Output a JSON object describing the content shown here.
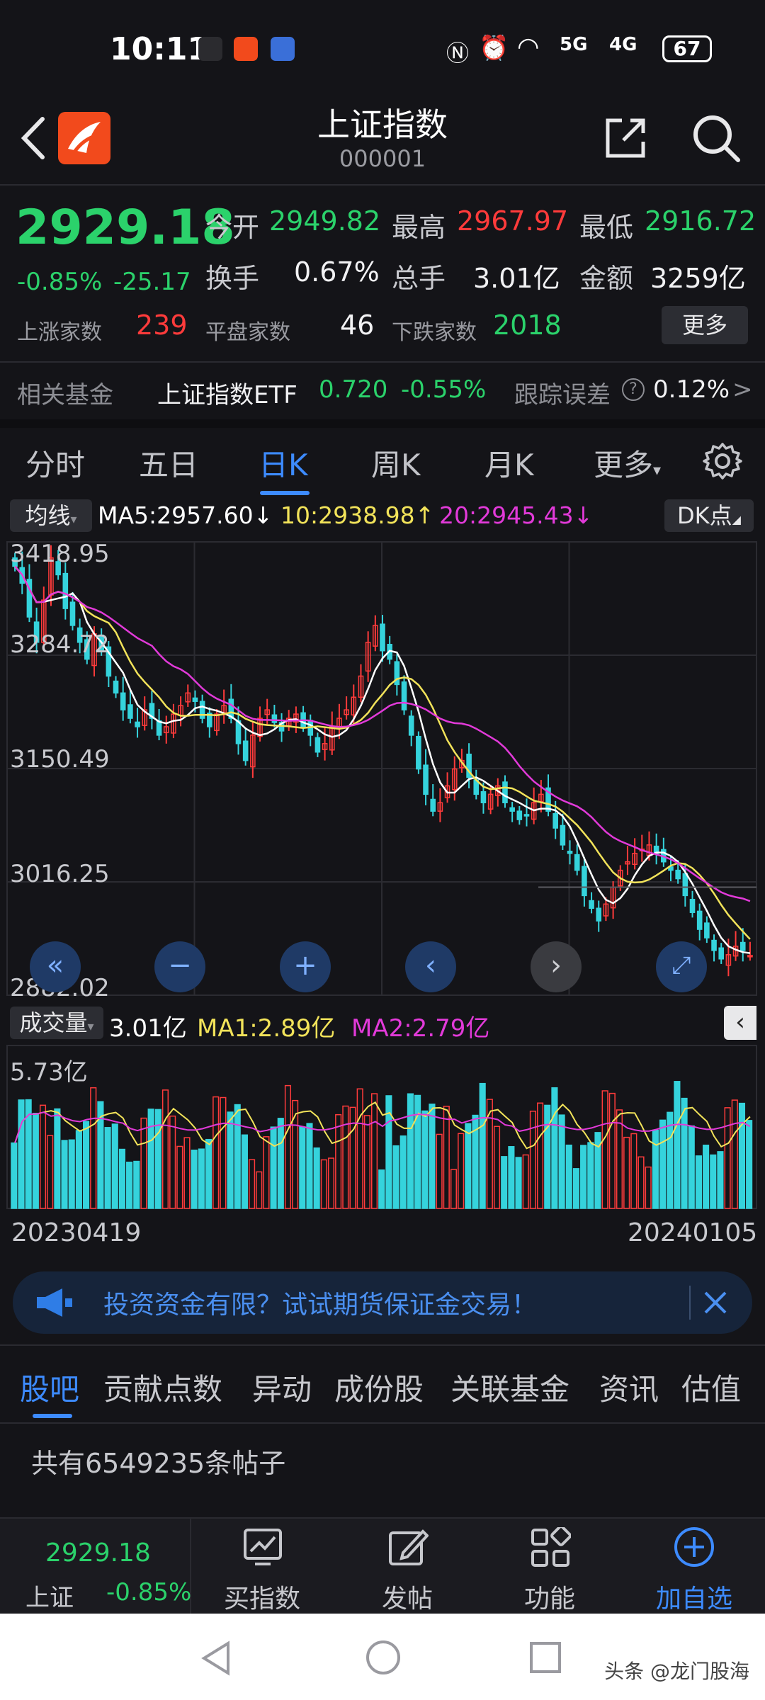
{
  "status_bar": {
    "time": "10:11",
    "signal_5g": "5G",
    "signal_4g": "4G",
    "battery": "67"
  },
  "header": {
    "title": "上证指数",
    "code": "000001"
  },
  "quote": {
    "price": "2929.18",
    "change_pct": "-0.85%",
    "change_val": "-25.17",
    "open_label": "今开",
    "open": "2949.82",
    "high_label": "最高",
    "high": "2967.97",
    "low_label": "最低",
    "low": "2916.72",
    "turnover_label": "换手",
    "turnover": "0.67%",
    "volume_label": "总手",
    "volume": "3.01亿",
    "amount_label": "金额",
    "amount": "3259亿",
    "up_label": "上涨家数",
    "up": "239",
    "flat_label": "平盘家数",
    "flat": "46",
    "down_label": "下跌家数",
    "down": "2018",
    "more": "更多"
  },
  "fund": {
    "label": "相关基金",
    "name": "上证指数ETF",
    "price": "0.720",
    "change": "-0.55%",
    "error_label": "跟踪误差",
    "error": "0.12%",
    "arrow": ">"
  },
  "tabs": [
    "分时",
    "五日",
    "日K",
    "周K",
    "月K",
    "更多"
  ],
  "active_tab": 2,
  "ma": {
    "chip": "均线",
    "ma5": "MA5:2957.60",
    "ma10": "10:2938.98",
    "ma20": "20:2945.43",
    "dk": "DK点",
    "color_ma5": "#ffffff",
    "color_ma10": "#f2e35a",
    "color_ma20": "#e23ad9"
  },
  "chart_data": {
    "type": "candlestick",
    "y_ticks": [
      "3418.95",
      "3284.72",
      "3150.49",
      "3016.25",
      "2882.02"
    ],
    "ylim": [
      2882.02,
      3418.95
    ],
    "x_labels": [
      "20230419",
      "20240105"
    ],
    "close": [
      3390,
      3370,
      3330,
      3300,
      3350,
      3400,
      3380,
      3340,
      3320,
      3300,
      3280,
      3310,
      3290,
      3260,
      3240,
      3220,
      3210,
      3200,
      3220,
      3210,
      3190,
      3200,
      3215,
      3225,
      3240,
      3230,
      3210,
      3200,
      3215,
      3225,
      3210,
      3180,
      3160,
      3190,
      3210,
      3220,
      3205,
      3195,
      3210,
      3215,
      3200,
      3190,
      3170,
      3180,
      3200,
      3210,
      3220,
      3235,
      3260,
      3300,
      3320,
      3290,
      3280,
      3250,
      3220,
      3190,
      3150,
      3120,
      3100,
      3110,
      3130,
      3150,
      3160,
      3140,
      3120,
      3110,
      3120,
      3130,
      3110,
      3100,
      3090,
      3095,
      3110,
      3120,
      3100,
      3080,
      3060,
      3050,
      3030,
      3000,
      2985,
      2970,
      2990,
      3010,
      3030,
      3040,
      3050,
      3055,
      3060,
      3050,
      3040,
      3030,
      3020,
      3000,
      2980,
      2960,
      2950,
      2935,
      2925,
      2930,
      2940,
      2935,
      2929.18
    ]
  },
  "volume": {
    "chip": "成交量",
    "value": "3.01亿",
    "ma1": "MA1:2.89亿",
    "ma2": "MA2:2.79亿",
    "max_label": "5.73亿"
  },
  "ad": {
    "text": "投资资金有限？试试期货保证金交易！"
  },
  "subtabs": [
    "股吧",
    "贡献点数",
    "异动",
    "成份股",
    "关联基金",
    "资讯",
    "估值"
  ],
  "posts": "共有6549235条帖子",
  "nav": {
    "price": "2929.18",
    "name": "上证",
    "change": "-0.85%",
    "items": [
      "买指数",
      "发帖",
      "功能",
      "加自选"
    ]
  },
  "watermark": "头条 @龙门股海"
}
